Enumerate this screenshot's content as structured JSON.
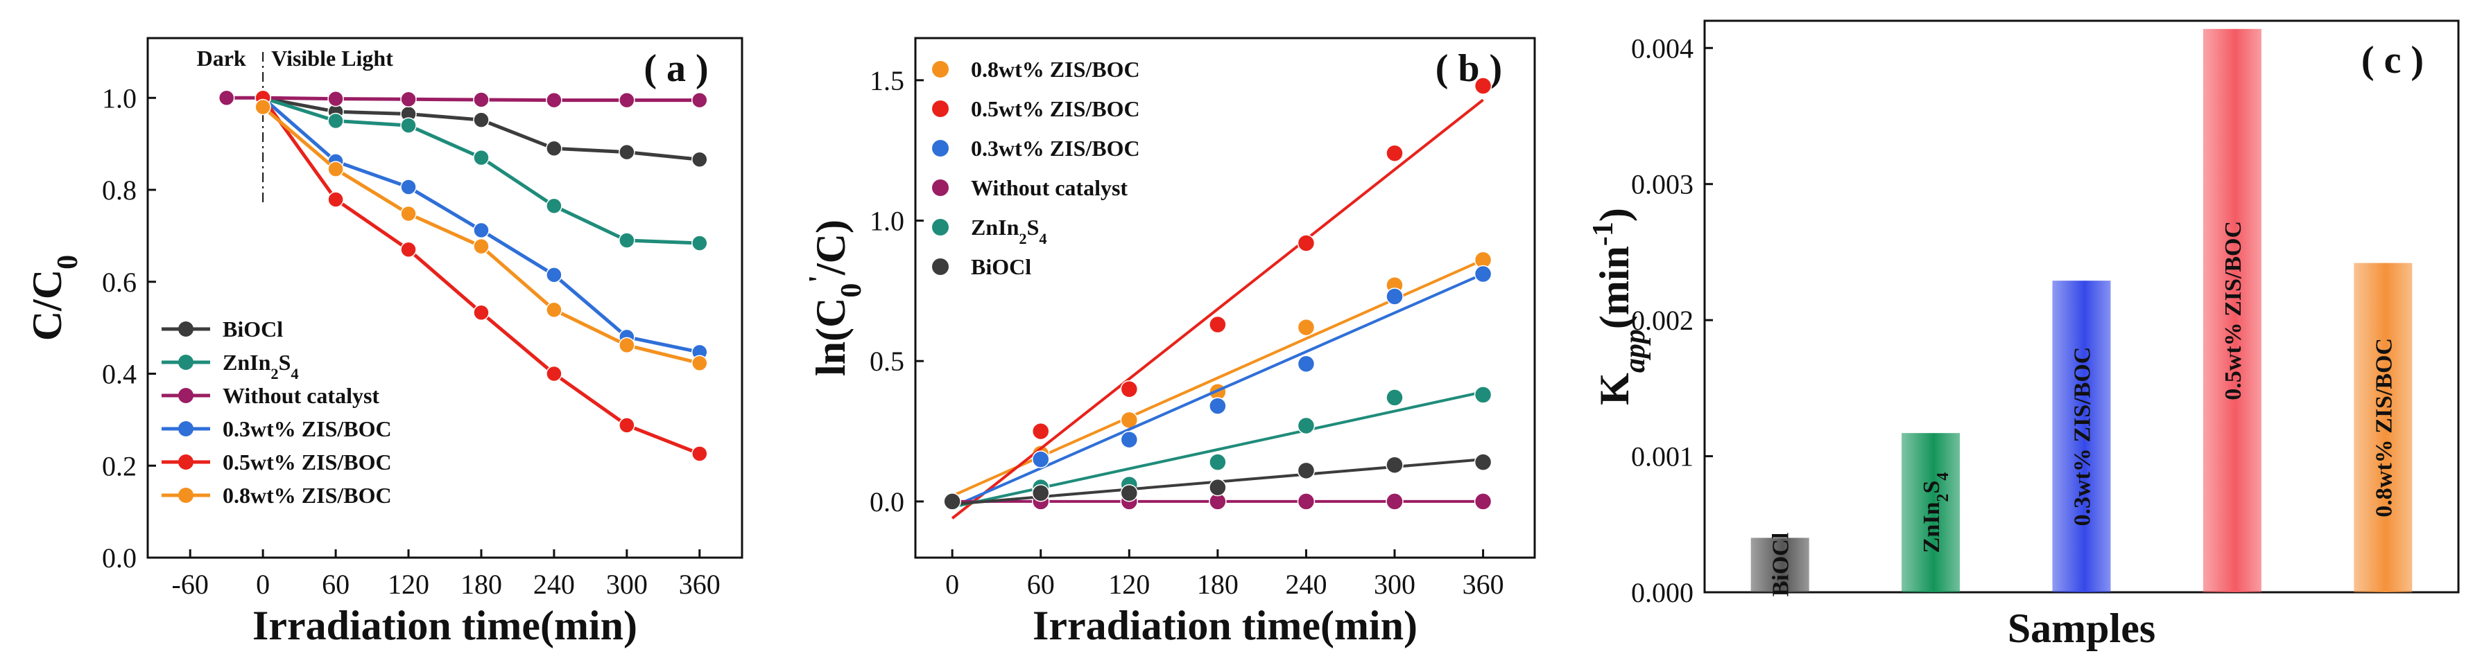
{
  "chart_data": [
    {
      "type": "line",
      "panel_label": "( a )",
      "xlabel": "Irradiation time(min)",
      "ylabel": "C/C0",
      "xlim": [
        -95,
        395
      ],
      "ylim": [
        0,
        1.13
      ],
      "x_ticks": [
        "-60",
        "0",
        "60",
        "120",
        "180",
        "240",
        "300",
        "360"
      ],
      "y_ticks": [
        "0.0",
        "0.2",
        "0.4",
        "0.6",
        "0.8",
        "1.0"
      ],
      "annotations": {
        "dark": "Dark",
        "light": "Visible Light"
      },
      "series": [
        {
          "name": "BiOCl",
          "color": "#3c3c3c",
          "x": [
            0,
            60,
            120,
            180,
            240,
            300,
            360
          ],
          "values": [
            1.0,
            0.97,
            0.965,
            0.952,
            0.89,
            0.882,
            0.866
          ]
        },
        {
          "name": "ZnIn2S4",
          "color": "#1f8c7a",
          "x": [
            0,
            60,
            120,
            180,
            240,
            300,
            360
          ],
          "values": [
            1.0,
            0.95,
            0.94,
            0.87,
            0.765,
            0.69,
            0.684
          ]
        },
        {
          "name": "Without catalyst",
          "color": "#9b1d63",
          "x": [
            -30,
            0,
            60,
            120,
            180,
            240,
            300,
            360
          ],
          "values": [
            1.0,
            1.0,
            0.998,
            0.997,
            0.996,
            0.995,
            0.995,
            0.995
          ]
        },
        {
          "name": "0.3wt% ZIS/BOC",
          "color": "#2f6fd8",
          "x": [
            0,
            60,
            120,
            180,
            240,
            300,
            360
          ],
          "values": [
            1.0,
            0.862,
            0.806,
            0.712,
            0.615,
            0.48,
            0.447
          ]
        },
        {
          "name": "0.5wt% ZIS/BOC",
          "color": "#e8221b",
          "x": [
            0,
            60,
            120,
            180,
            240,
            300,
            360
          ],
          "values": [
            1.0,
            0.779,
            0.67,
            0.533,
            0.4,
            0.288,
            0.226
          ]
        },
        {
          "name": "0.8wt% ZIS/BOC",
          "color": "#f4911e",
          "x": [
            0,
            60,
            120,
            180,
            240,
            300,
            360
          ],
          "values": [
            0.98,
            0.845,
            0.748,
            0.677,
            0.539,
            0.462,
            0.423
          ]
        }
      ]
    },
    {
      "type": "scatter",
      "panel_label": "( b )",
      "xlabel": "Irradiation time(min)",
      "ylabel": "ln(C0'/C)",
      "xlim": [
        -25,
        395
      ],
      "ylim": [
        -0.2,
        1.65
      ],
      "x_ticks": [
        "0",
        "60",
        "120",
        "180",
        "240",
        "300",
        "360"
      ],
      "y_ticks": [
        "0.0",
        "0.5",
        "1.0",
        "1.5"
      ],
      "series": [
        {
          "name": "0.8wt% ZIS/BOC",
          "color": "#f4911e",
          "x": [
            0,
            60,
            120,
            180,
            240,
            300,
            360
          ],
          "values": [
            0.0,
            0.17,
            0.29,
            0.39,
            0.62,
            0.77,
            0.86
          ],
          "fit": [
            0.02,
            0.86
          ]
        },
        {
          "name": "0.5wt% ZIS/BOC",
          "color": "#e8221b",
          "x": [
            0,
            60,
            120,
            180,
            240,
            300,
            360
          ],
          "values": [
            0.0,
            0.25,
            0.4,
            0.63,
            0.92,
            1.24,
            1.48
          ],
          "fit": [
            -0.06,
            1.43
          ]
        },
        {
          "name": "0.3wt% ZIS/BOC",
          "color": "#2f6fd8",
          "x": [
            0,
            60,
            120,
            180,
            240,
            300,
            360
          ],
          "values": [
            0.0,
            0.15,
            0.22,
            0.34,
            0.49,
            0.73,
            0.81
          ],
          "fit": [
            -0.02,
            0.81
          ]
        },
        {
          "name": "Without catalyst",
          "color": "#9b1d63",
          "x": [
            0,
            60,
            120,
            180,
            240,
            300,
            360
          ],
          "values": [
            0.0,
            0.0,
            0.0,
            0.0,
            0.0,
            0.0,
            0.0
          ],
          "fit": [
            0.0,
            0.0
          ]
        },
        {
          "name": "ZnIn2S4",
          "color": "#1f8c7a",
          "x": [
            0,
            60,
            120,
            180,
            240,
            300,
            360
          ],
          "values": [
            0.0,
            0.05,
            0.06,
            0.14,
            0.27,
            0.37,
            0.38
          ],
          "fit": [
            -0.02,
            0.39
          ]
        },
        {
          "name": "BiOCl",
          "color": "#3c3c3c",
          "x": [
            0,
            60,
            120,
            180,
            240,
            300,
            360
          ],
          "values": [
            0.0,
            0.03,
            0.03,
            0.05,
            0.11,
            0.13,
            0.14
          ],
          "fit": [
            -0.01,
            0.15
          ]
        }
      ]
    },
    {
      "type": "bar",
      "panel_label": "( c )",
      "xlabel": "Samples",
      "ylabel": "Kapp(min-1)",
      "ylim": [
        0,
        0.0042
      ],
      "y_ticks": [
        "0.000",
        "0.001",
        "0.002",
        "0.003",
        "0.004"
      ],
      "categories": [
        "BiOCl",
        "ZnIn2S4",
        "0.3wt% ZIS/BOC",
        "0.5wt% ZIS/BOC",
        "0.8wt% ZIS/BOC"
      ],
      "values": [
        0.0004,
        0.00117,
        0.00229,
        0.00414,
        0.00242
      ],
      "colors": [
        "#555555",
        "#14955a",
        "#3549e8",
        "#f45b64",
        "#f4923a"
      ]
    }
  ]
}
